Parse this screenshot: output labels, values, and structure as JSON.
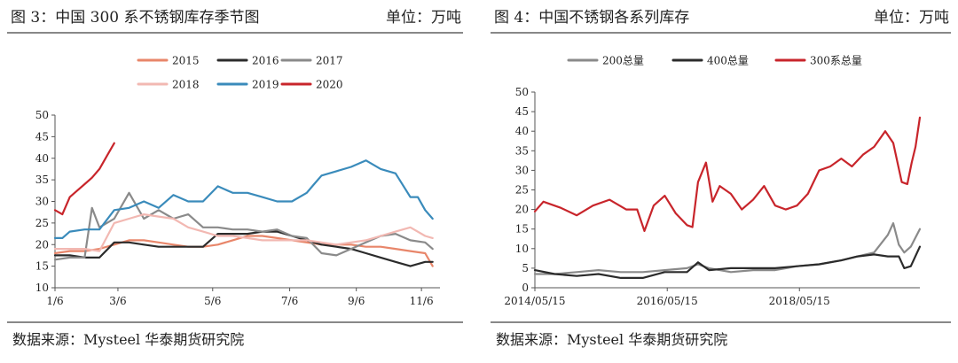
{
  "left": {
    "title": "图 3：中国 300 系不锈钢库存季节图",
    "unit": "单位：万吨",
    "source": "数据来源：Mysteel  华泰期货研究院",
    "chart_data": {
      "type": "line",
      "ylim": [
        10,
        50
      ],
      "yticks": [
        10,
        15,
        20,
        25,
        30,
        35,
        40,
        45,
        50
      ],
      "xlim": [
        0,
        52
      ],
      "xtick_positions": [
        0,
        8.5,
        21.3,
        31.7,
        40.7,
        49.5
      ],
      "xtick_labels": [
        "1/6",
        "3/6",
        "5/6",
        "7/6",
        "9/6",
        "11/6"
      ],
      "legend_placement": "top",
      "series": [
        {
          "name": "2015",
          "color": "#e8866a",
          "x": [
            0,
            2,
            4,
            6,
            8,
            10,
            12,
            14,
            16,
            18,
            20,
            22,
            24,
            26,
            28,
            30,
            32,
            34,
            36,
            38,
            40,
            42,
            44,
            46,
            48,
            50,
            51
          ],
          "y": [
            18,
            18.5,
            18.5,
            19,
            20,
            21,
            21,
            20.5,
            20,
            19.5,
            19.5,
            20,
            21,
            22,
            22,
            21.5,
            21,
            20.5,
            20,
            20,
            20,
            19.5,
            19.5,
            19,
            18.5,
            18,
            15
          ]
        },
        {
          "name": "2016",
          "color": "#2b2b2b",
          "x": [
            0,
            2,
            4,
            6,
            8,
            10,
            12,
            14,
            16,
            18,
            20,
            22,
            24,
            26,
            28,
            30,
            32,
            34,
            36,
            38,
            40,
            42,
            44,
            46,
            48,
            50,
            51
          ],
          "y": [
            17.5,
            17.5,
            17,
            17,
            20.5,
            20.5,
            20,
            19.5,
            19.5,
            19.5,
            19.5,
            22.5,
            22.5,
            22.5,
            23,
            23,
            22,
            21,
            20,
            19.5,
            19,
            18,
            17,
            16,
            15,
            16,
            16
          ]
        },
        {
          "name": "2017",
          "color": "#8a8a8a",
          "x": [
            0,
            2,
            4,
            5,
            6,
            8,
            10,
            12,
            14,
            16,
            18,
            20,
            22,
            24,
            26,
            28,
            30,
            32,
            34,
            36,
            38,
            40,
            42,
            44,
            46,
            48,
            50,
            51
          ],
          "y": [
            16.5,
            17,
            17,
            28.5,
            24,
            26,
            32,
            26,
            28,
            26,
            27,
            24,
            24,
            23.5,
            23.5,
            23,
            23.5,
            22,
            21.5,
            18,
            17.5,
            19,
            20.5,
            22,
            22.5,
            21,
            20.5,
            19
          ]
        },
        {
          "name": "2018",
          "color": "#f2b8b2",
          "x": [
            0,
            2,
            4,
            6,
            8,
            10,
            12,
            14,
            16,
            18,
            20,
            22,
            24,
            26,
            28,
            30,
            32,
            34,
            36,
            38,
            40,
            42,
            44,
            46,
            48,
            50,
            51
          ],
          "y": [
            19,
            19,
            19,
            18.5,
            25,
            26,
            27,
            26.5,
            26,
            24,
            23,
            22,
            22,
            21.5,
            21,
            21,
            21,
            21,
            20.5,
            20,
            20.5,
            21,
            22,
            23,
            24,
            22,
            21.5
          ]
        },
        {
          "name": "2019",
          "color": "#3a8bbb",
          "x": [
            0,
            1,
            2,
            4,
            6,
            8,
            10,
            12,
            14,
            16,
            18,
            20,
            22,
            24,
            26,
            28,
            30,
            32,
            34,
            35,
            36,
            38,
            40,
            42,
            44,
            46,
            48,
            49,
            50,
            51
          ],
          "y": [
            21.5,
            21.5,
            23,
            23.5,
            23.5,
            28,
            28.5,
            30,
            28.5,
            31.5,
            30,
            30,
            33.5,
            32,
            32,
            31,
            30,
            30,
            32,
            34,
            36,
            37,
            38,
            39.5,
            37.5,
            36.5,
            31,
            31,
            28,
            26
          ]
        },
        {
          "name": "2020",
          "color": "#c8252b",
          "x": [
            0,
            1,
            2,
            3,
            4,
            5,
            6,
            7,
            8
          ],
          "y": [
            28,
            27,
            31,
            32.5,
            34,
            35.5,
            37.5,
            40.5,
            43.5
          ]
        }
      ]
    }
  },
  "right": {
    "title": "图 4：中国不锈钢各系列库存",
    "unit": "单位：万吨",
    "source": "数据来源：Mysteel  华泰期货研究院",
    "chart_data": {
      "type": "line",
      "ylim": [
        0,
        50
      ],
      "yticks": [
        0,
        5,
        10,
        15,
        20,
        25,
        30,
        35,
        40,
        45,
        50
      ],
      "xlim": [
        "2014-05-15",
        "2020-03-10"
      ],
      "xtick_labels": [
        "2014/05/15",
        "2016/05/15",
        "2018/05/15"
      ],
      "xtick_dates": [
        "2014-05-15",
        "2016-05-15",
        "2018-05-15"
      ],
      "legend_placement": "top",
      "series": [
        {
          "name": "200总量",
          "color": "#8a8a8a",
          "x": [
            "2014-05-15",
            "2014-09-01",
            "2015-01-01",
            "2015-05-01",
            "2015-09-01",
            "2016-01-01",
            "2016-05-01",
            "2016-09-01",
            "2016-11-01",
            "2017-01-01",
            "2017-05-01",
            "2017-09-01",
            "2018-01-01",
            "2018-05-01",
            "2018-09-01",
            "2019-01-01",
            "2019-04-01",
            "2019-07-01",
            "2019-09-15",
            "2019-10-15",
            "2019-11-15",
            "2019-12-15",
            "2020-01-20",
            "2020-03-10"
          ],
          "y": [
            3.5,
            3.5,
            4,
            4.5,
            4,
            4,
            4.5,
            5,
            6,
            5,
            4,
            4.5,
            4.5,
            5.5,
            6,
            7,
            8,
            9,
            13.5,
            16.5,
            11,
            9,
            10.5,
            15
          ]
        },
        {
          "name": "400总量",
          "color": "#2b2b2b",
          "x": [
            "2014-05-15",
            "2014-09-01",
            "2015-01-01",
            "2015-05-01",
            "2015-09-01",
            "2016-01-01",
            "2016-05-01",
            "2016-09-01",
            "2016-11-01",
            "2017-01-01",
            "2017-05-01",
            "2017-09-01",
            "2018-01-01",
            "2018-05-01",
            "2018-09-01",
            "2019-01-01",
            "2019-04-01",
            "2019-07-01",
            "2019-09-15",
            "2019-11-15",
            "2019-12-15",
            "2020-01-20",
            "2020-03-10"
          ],
          "y": [
            4.5,
            3.5,
            3,
            3.5,
            2.5,
            2.5,
            4,
            4,
            6.5,
            4.5,
            5,
            5,
            5,
            5.5,
            6,
            7,
            8,
            8.5,
            8,
            8,
            5,
            5.5,
            10.5
          ]
        },
        {
          "name": "300系总量",
          "color": "#c8252b",
          "x": [
            "2014-05-15",
            "2014-07-01",
            "2014-10-01",
            "2015-01-01",
            "2015-04-01",
            "2015-07-01",
            "2015-10-01",
            "2015-12-01",
            "2016-01-10",
            "2016-03-01",
            "2016-05-01",
            "2016-07-01",
            "2016-09-01",
            "2016-10-01",
            "2016-11-01",
            "2016-12-15",
            "2017-01-20",
            "2017-03-01",
            "2017-05-01",
            "2017-07-01",
            "2017-09-01",
            "2017-11-01",
            "2018-01-01",
            "2018-03-01",
            "2018-05-01",
            "2018-07-01",
            "2018-09-01",
            "2018-11-01",
            "2019-01-01",
            "2019-03-01",
            "2019-05-01",
            "2019-07-01",
            "2019-09-01",
            "2019-10-15",
            "2019-12-01",
            "2020-01-01",
            "2020-01-25",
            "2020-02-15",
            "2020-03-10"
          ],
          "y": [
            19.5,
            22,
            20.5,
            18.5,
            21,
            22.5,
            20,
            20,
            14.5,
            21,
            23.5,
            19,
            16,
            15.5,
            27,
            32,
            22,
            26,
            24,
            20,
            22.5,
            26,
            21,
            20,
            21,
            24,
            30,
            31,
            33,
            31,
            34,
            36,
            40,
            37,
            27,
            26.5,
            32,
            36,
            43.5
          ]
        }
      ]
    }
  }
}
